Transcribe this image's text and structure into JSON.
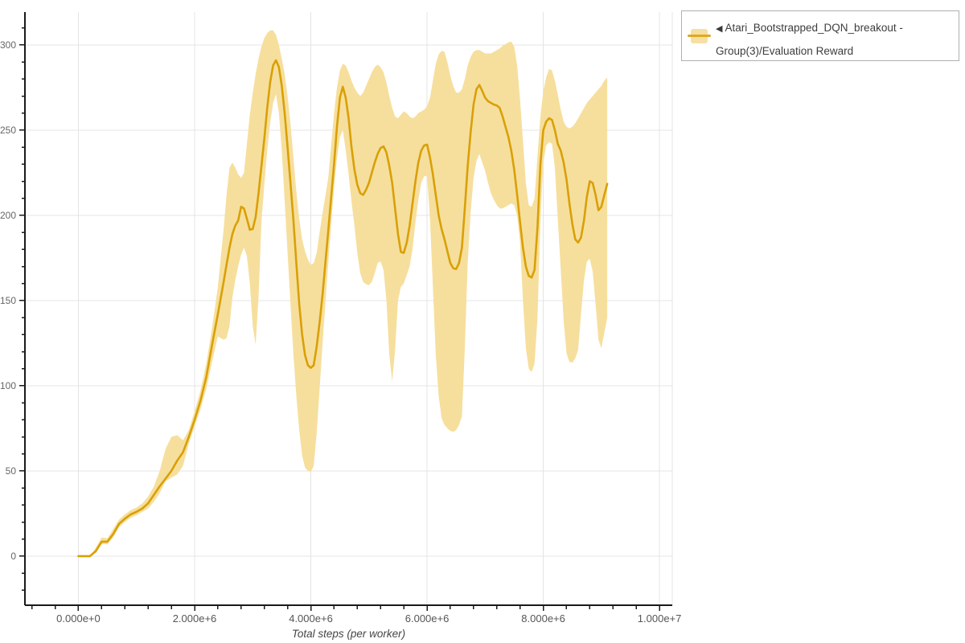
{
  "legend": {
    "collapse_icon": "◀",
    "series_label": "Atari_Bootstrapped_DQN_breakout - Group(3)/Evaluation Reward"
  },
  "chart_data": {
    "type": "line",
    "title": "",
    "xlabel": "Total steps (per worker)",
    "ylabel": "",
    "x_unit": "steps",
    "grid": true,
    "legend_position": "top-right",
    "xlim_e6": [
      -0.92,
      10.22
    ],
    "ylim": [
      -28.8,
      319.3
    ],
    "x_ticks": [
      {
        "value_e6": 0,
        "label": "0.000e+0"
      },
      {
        "value_e6": 2,
        "label": "2.000e+6"
      },
      {
        "value_e6": 4,
        "label": "4.000e+6"
      },
      {
        "value_e6": 6,
        "label": "6.000e+6"
      },
      {
        "value_e6": 8,
        "label": "8.000e+6"
      },
      {
        "value_e6": 10,
        "label": "1.000e+7"
      }
    ],
    "x_minor_step_e6": 0.4,
    "y_ticks": [
      {
        "value": 0,
        "label": "0"
      },
      {
        "value": 50,
        "label": "50"
      },
      {
        "value": 100,
        "label": "100"
      },
      {
        "value": 150,
        "label": "150"
      },
      {
        "value": 200,
        "label": "200"
      },
      {
        "value": 250,
        "label": "250"
      },
      {
        "value": 300,
        "label": "300"
      }
    ],
    "y_minor_step": 10,
    "colors": {
      "line": "#D9A006",
      "band": "#F6DF9D",
      "grid": "#E4E4E4",
      "axis": "#1A1A1A",
      "tick_label": "#666666",
      "axis_label": "#444444",
      "legend_border": "#B0B0B0",
      "legend_text": "#3D3D3D",
      "swatch_band": "#F5DFA3",
      "swatch_line": "#DFA921"
    },
    "series": [
      {
        "name": "Atari_Bootstrapped_DQN_breakout - Group(3)/Evaluation Reward",
        "points_steps_e6_mean_lower_upper": [
          [
            0,
            0,
            0,
            0
          ],
          [
            0.1,
            0,
            0,
            0
          ],
          [
            0.2,
            0,
            0,
            0
          ],
          [
            0.3,
            3,
            2,
            5
          ],
          [
            0.4,
            8.5,
            7,
            11
          ],
          [
            0.5,
            8.5,
            7,
            10.5
          ],
          [
            0.6,
            13,
            11,
            16
          ],
          [
            0.7,
            19,
            17,
            21.5
          ],
          [
            0.8,
            22,
            20,
            24.5
          ],
          [
            0.9,
            24.5,
            22.5,
            27
          ],
          [
            1,
            26,
            24,
            28.5
          ],
          [
            1.1,
            28,
            26,
            31
          ],
          [
            1.2,
            31,
            28,
            35
          ],
          [
            1.3,
            36,
            32,
            41
          ],
          [
            1.4,
            41,
            37,
            50
          ],
          [
            1.5,
            45.5,
            44,
            63
          ],
          [
            1.6,
            50,
            46,
            70
          ],
          [
            1.7,
            56,
            48,
            71
          ],
          [
            1.8,
            61,
            53,
            68
          ],
          [
            1.9,
            70,
            66,
            74
          ],
          [
            2,
            80,
            76,
            85
          ],
          [
            2.1,
            91,
            86,
            97
          ],
          [
            2.2,
            105,
            98,
            113
          ],
          [
            2.3,
            124,
            114,
            134
          ],
          [
            2.4,
            142,
            129,
            158
          ],
          [
            2.5,
            161,
            127,
            192
          ],
          [
            2.55,
            171,
            128,
            212
          ],
          [
            2.6,
            181,
            135,
            228
          ],
          [
            2.65,
            189,
            152,
            231
          ],
          [
            2.7,
            194,
            162,
            228
          ],
          [
            2.75,
            197,
            170,
            224
          ],
          [
            2.8,
            205,
            177,
            222
          ],
          [
            2.85,
            204,
            181,
            225
          ],
          [
            2.9,
            198,
            176,
            242
          ],
          [
            2.95,
            191.5,
            160,
            259
          ],
          [
            3,
            192,
            135,
            272
          ],
          [
            3.05,
            199,
            124,
            283
          ],
          [
            3.1,
            213,
            152,
            292
          ],
          [
            3.15,
            229,
            196,
            299
          ],
          [
            3.2,
            245,
            218,
            304
          ],
          [
            3.25,
            263,
            238,
            307
          ],
          [
            3.3,
            278,
            254,
            308.5
          ],
          [
            3.35,
            288,
            266,
            308.5
          ],
          [
            3.4,
            291,
            271,
            306
          ],
          [
            3.45,
            287,
            260,
            300
          ],
          [
            3.5,
            276,
            238,
            292
          ],
          [
            3.55,
            260,
            208,
            283
          ],
          [
            3.6,
            240,
            178,
            270
          ],
          [
            3.65,
            219,
            148,
            254
          ],
          [
            3.7,
            197,
            118,
            234
          ],
          [
            3.75,
            172,
            94,
            214
          ],
          [
            3.8,
            148,
            74,
            198
          ],
          [
            3.85,
            130,
            59,
            186
          ],
          [
            3.9,
            118,
            52,
            179
          ],
          [
            3.95,
            112,
            50,
            174
          ],
          [
            4,
            110.5,
            49.5,
            171
          ],
          [
            4.05,
            112,
            53,
            172
          ],
          [
            4.1,
            123,
            72,
            178
          ],
          [
            4.15,
            137,
            98,
            190
          ],
          [
            4.2,
            153,
            124,
            201
          ],
          [
            4.3,
            191,
            172,
            222
          ],
          [
            4.4,
            230,
            216,
            260
          ],
          [
            4.45,
            252,
            233,
            275
          ],
          [
            4.5,
            269,
            246,
            285
          ],
          [
            4.55,
            275.5,
            250,
            289
          ],
          [
            4.6,
            269,
            238,
            288
          ],
          [
            4.65,
            257,
            224,
            284
          ],
          [
            4.7,
            240,
            208,
            279
          ],
          [
            4.75,
            227,
            194,
            275
          ],
          [
            4.8,
            218,
            178,
            272
          ],
          [
            4.85,
            213,
            166,
            270
          ],
          [
            4.9,
            212,
            161,
            272
          ],
          [
            4.95,
            215,
            159.5,
            276
          ],
          [
            5,
            219,
            159,
            280
          ],
          [
            5.05,
            225,
            161,
            284
          ],
          [
            5.1,
            231,
            166,
            287
          ],
          [
            5.15,
            236,
            172,
            288.5
          ],
          [
            5.2,
            239.5,
            173,
            287
          ],
          [
            5.25,
            240.5,
            168,
            284
          ],
          [
            5.3,
            237,
            150,
            278
          ],
          [
            5.35,
            229,
            118,
            270
          ],
          [
            5.4,
            219,
            102.5,
            263
          ],
          [
            5.45,
            204,
            121,
            258
          ],
          [
            5.5,
            189,
            150,
            257
          ],
          [
            5.55,
            178.5,
            158,
            259
          ],
          [
            5.6,
            178,
            160,
            261
          ],
          [
            5.65,
            184,
            165,
            260
          ],
          [
            5.7,
            194,
            170,
            258
          ],
          [
            5.75,
            207,
            180,
            257
          ],
          [
            5.8,
            220,
            196,
            258
          ],
          [
            5.85,
            231,
            209,
            260
          ],
          [
            5.9,
            238,
            219,
            261
          ],
          [
            5.95,
            241,
            223,
            262
          ],
          [
            6,
            241.5,
            223,
            264
          ],
          [
            6.05,
            234,
            198,
            269
          ],
          [
            6.1,
            224,
            158,
            279
          ],
          [
            6.15,
            212,
            118,
            289
          ],
          [
            6.2,
            200,
            94,
            294.5
          ],
          [
            6.25,
            192,
            81,
            296.5
          ],
          [
            6.3,
            186,
            77,
            296
          ],
          [
            6.35,
            179,
            75,
            290
          ],
          [
            6.4,
            172,
            73.5,
            282
          ],
          [
            6.45,
            169,
            73,
            276
          ],
          [
            6.5,
            168.5,
            74,
            272
          ],
          [
            6.55,
            172,
            77,
            272
          ],
          [
            6.6,
            181,
            82,
            274
          ],
          [
            6.65,
            204,
            122,
            280
          ],
          [
            6.7,
            229,
            172,
            288
          ],
          [
            6.75,
            249,
            202,
            293
          ],
          [
            6.8,
            265,
            222,
            296
          ],
          [
            6.85,
            274,
            232,
            297
          ],
          [
            6.9,
            276.5,
            236,
            297
          ],
          [
            6.95,
            273,
            231,
            296
          ],
          [
            7,
            269,
            226,
            295
          ],
          [
            7.05,
            267,
            219,
            295
          ],
          [
            7.1,
            266,
            213,
            295
          ],
          [
            7.15,
            265,
            209,
            296
          ],
          [
            7.2,
            264.5,
            206,
            297
          ],
          [
            7.25,
            263,
            204,
            298
          ],
          [
            7.3,
            258,
            204,
            299.5
          ],
          [
            7.35,
            252,
            205,
            300.5
          ],
          [
            7.4,
            246,
            206,
            301.5
          ],
          [
            7.45,
            238,
            207,
            302
          ],
          [
            7.5,
            227,
            206,
            299
          ],
          [
            7.55,
            212,
            200,
            288
          ],
          [
            7.6,
            196,
            184,
            268
          ],
          [
            7.65,
            181,
            150,
            244
          ],
          [
            7.7,
            170,
            122,
            219
          ],
          [
            7.75,
            164.5,
            110,
            206
          ],
          [
            7.8,
            163.5,
            108,
            205
          ],
          [
            7.85,
            168,
            113,
            210
          ],
          [
            7.9,
            193,
            140,
            235
          ],
          [
            7.95,
            230,
            196,
            258
          ],
          [
            8,
            250,
            231,
            273
          ],
          [
            8.05,
            255,
            241,
            281
          ],
          [
            8.1,
            257,
            243,
            286
          ],
          [
            8.15,
            256,
            242,
            285
          ],
          [
            8.2,
            250,
            228,
            279
          ],
          [
            8.25,
            242,
            198,
            271
          ],
          [
            8.3,
            238,
            168,
            262
          ],
          [
            8.35,
            231,
            138,
            255
          ],
          [
            8.4,
            221,
            119,
            252
          ],
          [
            8.45,
            207,
            114,
            251
          ],
          [
            8.5,
            195,
            113.5,
            252
          ],
          [
            8.55,
            186,
            116,
            254
          ],
          [
            8.6,
            184,
            121,
            257
          ],
          [
            8.65,
            187,
            142,
            260
          ],
          [
            8.7,
            197,
            162,
            263
          ],
          [
            8.75,
            211,
            173,
            266
          ],
          [
            8.8,
            220,
            174.5,
            268
          ],
          [
            8.85,
            219,
            167,
            270
          ],
          [
            8.9,
            212,
            148,
            272
          ],
          [
            8.95,
            203,
            127,
            274
          ],
          [
            9,
            205,
            122,
            276
          ],
          [
            9.05,
            212,
            131,
            279
          ],
          [
            9.1,
            218.5,
            140,
            281
          ]
        ]
      }
    ]
  }
}
